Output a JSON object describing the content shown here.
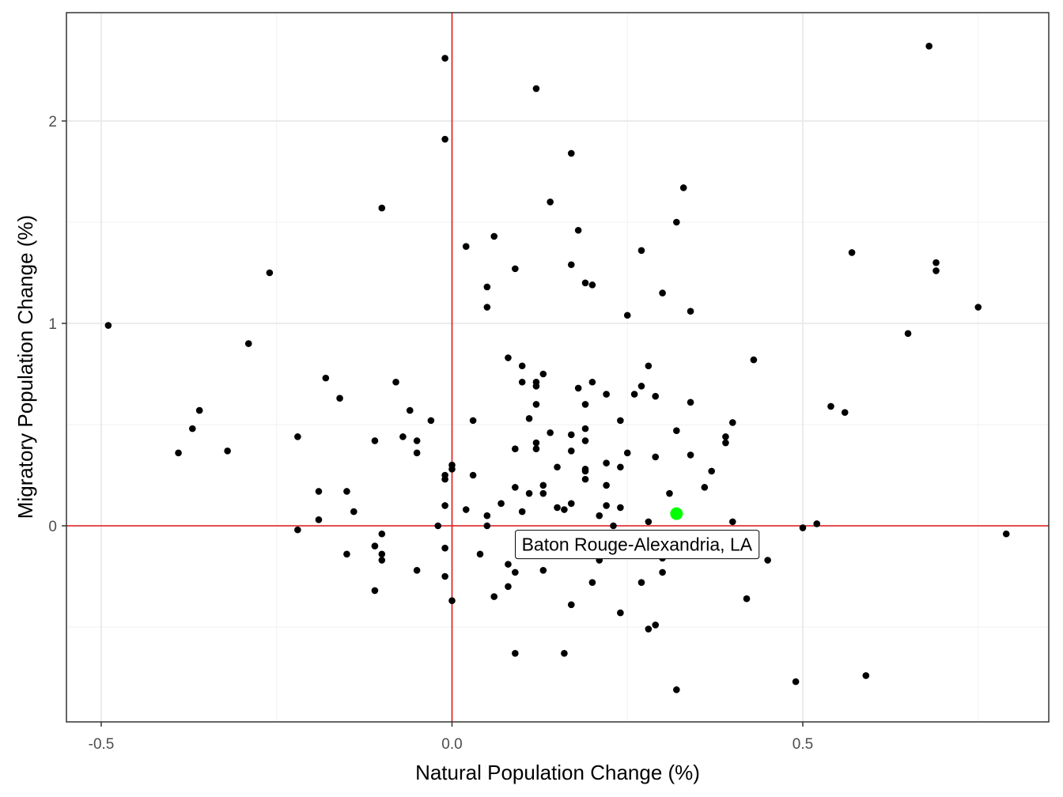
{
  "chart_data": {
    "type": "scatter",
    "xlabel": "Natural Population Change (%)",
    "ylabel": "Migratory Population Change (%)",
    "xlim": [
      -0.5,
      0.8
    ],
    "ylim": [
      -0.9,
      2.5
    ],
    "x_ticks": [
      -0.5,
      0.0,
      0.5
    ],
    "x_tick_labels": [
      "-0.5",
      "0.0",
      "0.5"
    ],
    "y_ticks": [
      0,
      1,
      2
    ],
    "y_tick_labels": [
      "0",
      "1",
      "2"
    ],
    "grid": true,
    "theme": "bw",
    "reference_lines": {
      "x": 0,
      "y": 0,
      "color": "#e31a1c"
    },
    "point_color": "#000000",
    "highlight_color": "#00ff00",
    "highlight": {
      "x": 0.32,
      "y": 0.06,
      "label": "Baton Rouge-Alexandria, LA"
    },
    "points": [
      {
        "x": -0.49,
        "y": 0.99
      },
      {
        "x": -0.39,
        "y": 0.36
      },
      {
        "x": -0.37,
        "y": 0.48
      },
      {
        "x": -0.36,
        "y": 0.57
      },
      {
        "x": -0.32,
        "y": 0.37
      },
      {
        "x": -0.29,
        "y": 0.9
      },
      {
        "x": -0.26,
        "y": 1.25
      },
      {
        "x": -0.22,
        "y": 0.44
      },
      {
        "x": -0.22,
        "y": -0.02
      },
      {
        "x": -0.19,
        "y": 0.17
      },
      {
        "x": -0.19,
        "y": 0.03
      },
      {
        "x": -0.18,
        "y": 0.73
      },
      {
        "x": -0.16,
        "y": 0.63
      },
      {
        "x": -0.15,
        "y": 0.17
      },
      {
        "x": -0.15,
        "y": -0.14
      },
      {
        "x": -0.14,
        "y": 0.07
      },
      {
        "x": -0.11,
        "y": 0.42
      },
      {
        "x": -0.11,
        "y": -0.1
      },
      {
        "x": -0.11,
        "y": -0.32
      },
      {
        "x": -0.1,
        "y": 1.57
      },
      {
        "x": -0.1,
        "y": -0.04
      },
      {
        "x": -0.1,
        "y": -0.14
      },
      {
        "x": -0.1,
        "y": -0.17
      },
      {
        "x": -0.08,
        "y": 0.71
      },
      {
        "x": -0.07,
        "y": 0.44
      },
      {
        "x": -0.06,
        "y": 0.57
      },
      {
        "x": -0.05,
        "y": 0.42
      },
      {
        "x": -0.05,
        "y": 0.36
      },
      {
        "x": -0.05,
        "y": -0.22
      },
      {
        "x": -0.03,
        "y": 0.52
      },
      {
        "x": -0.02,
        "y": 0.0
      },
      {
        "x": -0.01,
        "y": 2.31
      },
      {
        "x": -0.01,
        "y": 1.91
      },
      {
        "x": -0.01,
        "y": 0.25
      },
      {
        "x": -0.01,
        "y": 0.23
      },
      {
        "x": -0.01,
        "y": 0.1
      },
      {
        "x": -0.01,
        "y": -0.11
      },
      {
        "x": -0.01,
        "y": -0.25
      },
      {
        "x": 0.0,
        "y": 0.3
      },
      {
        "x": 0.0,
        "y": 0.28
      },
      {
        "x": 0.0,
        "y": -0.37
      },
      {
        "x": 0.02,
        "y": 1.38
      },
      {
        "x": 0.02,
        "y": 0.08
      },
      {
        "x": 0.03,
        "y": 0.52
      },
      {
        "x": 0.03,
        "y": 0.25
      },
      {
        "x": 0.04,
        "y": -0.14
      },
      {
        "x": 0.05,
        "y": 1.18
      },
      {
        "x": 0.05,
        "y": 1.08
      },
      {
        "x": 0.05,
        "y": 0.05
      },
      {
        "x": 0.05,
        "y": 0.0
      },
      {
        "x": 0.06,
        "y": 1.43
      },
      {
        "x": 0.06,
        "y": -0.35
      },
      {
        "x": 0.07,
        "y": 0.11
      },
      {
        "x": 0.08,
        "y": 0.83
      },
      {
        "x": 0.08,
        "y": -0.19
      },
      {
        "x": 0.08,
        "y": -0.3
      },
      {
        "x": 0.09,
        "y": 1.27
      },
      {
        "x": 0.09,
        "y": 0.38
      },
      {
        "x": 0.09,
        "y": 0.19
      },
      {
        "x": 0.09,
        "y": -0.23
      },
      {
        "x": 0.09,
        "y": -0.63
      },
      {
        "x": 0.1,
        "y": 0.79
      },
      {
        "x": 0.1,
        "y": 0.71
      },
      {
        "x": 0.1,
        "y": 0.07
      },
      {
        "x": 0.11,
        "y": 0.53
      },
      {
        "x": 0.11,
        "y": 0.16
      },
      {
        "x": 0.12,
        "y": 2.16
      },
      {
        "x": 0.12,
        "y": 0.71
      },
      {
        "x": 0.12,
        "y": 0.69
      },
      {
        "x": 0.12,
        "y": 0.6
      },
      {
        "x": 0.12,
        "y": 0.41
      },
      {
        "x": 0.12,
        "y": 0.38
      },
      {
        "x": 0.13,
        "y": 0.75
      },
      {
        "x": 0.13,
        "y": 0.2
      },
      {
        "x": 0.13,
        "y": 0.16
      },
      {
        "x": 0.13,
        "y": -0.22
      },
      {
        "x": 0.14,
        "y": 1.6
      },
      {
        "x": 0.14,
        "y": 0.46
      },
      {
        "x": 0.15,
        "y": 0.29
      },
      {
        "x": 0.15,
        "y": 0.09
      },
      {
        "x": 0.16,
        "y": 0.08
      },
      {
        "x": 0.16,
        "y": -0.63
      },
      {
        "x": 0.17,
        "y": 1.84
      },
      {
        "x": 0.17,
        "y": 1.29
      },
      {
        "x": 0.17,
        "y": 0.45
      },
      {
        "x": 0.17,
        "y": 0.37
      },
      {
        "x": 0.17,
        "y": 0.11
      },
      {
        "x": 0.17,
        "y": -0.39
      },
      {
        "x": 0.18,
        "y": 1.46
      },
      {
        "x": 0.18,
        "y": 0.68
      },
      {
        "x": 0.19,
        "y": 1.2
      },
      {
        "x": 0.19,
        "y": 0.6
      },
      {
        "x": 0.19,
        "y": 0.48
      },
      {
        "x": 0.19,
        "y": 0.42
      },
      {
        "x": 0.19,
        "y": 0.28
      },
      {
        "x": 0.19,
        "y": 0.27
      },
      {
        "x": 0.19,
        "y": 0.23
      },
      {
        "x": 0.2,
        "y": 1.19
      },
      {
        "x": 0.2,
        "y": 0.71
      },
      {
        "x": 0.2,
        "y": -0.28
      },
      {
        "x": 0.21,
        "y": 0.05
      },
      {
        "x": 0.21,
        "y": -0.17
      },
      {
        "x": 0.22,
        "y": 0.65
      },
      {
        "x": 0.22,
        "y": 0.31
      },
      {
        "x": 0.22,
        "y": 0.2
      },
      {
        "x": 0.22,
        "y": 0.1
      },
      {
        "x": 0.23,
        "y": 0.0
      },
      {
        "x": 0.24,
        "y": 0.52
      },
      {
        "x": 0.24,
        "y": 0.29
      },
      {
        "x": 0.24,
        "y": 0.09
      },
      {
        "x": 0.24,
        "y": -0.43
      },
      {
        "x": 0.25,
        "y": 1.04
      },
      {
        "x": 0.25,
        "y": 0.36
      },
      {
        "x": 0.26,
        "y": 0.65
      },
      {
        "x": 0.27,
        "y": 1.36
      },
      {
        "x": 0.27,
        "y": 0.69
      },
      {
        "x": 0.27,
        "y": -0.28
      },
      {
        "x": 0.28,
        "y": 0.79
      },
      {
        "x": 0.28,
        "y": 0.02
      },
      {
        "x": 0.28,
        "y": -0.51
      },
      {
        "x": 0.29,
        "y": 0.64
      },
      {
        "x": 0.29,
        "y": 0.34
      },
      {
        "x": 0.29,
        "y": -0.49
      },
      {
        "x": 0.3,
        "y": 1.15
      },
      {
        "x": 0.3,
        "y": -0.16
      },
      {
        "x": 0.3,
        "y": -0.23
      },
      {
        "x": 0.31,
        "y": 0.16
      },
      {
        "x": 0.32,
        "y": 1.5
      },
      {
        "x": 0.32,
        "y": 0.47
      },
      {
        "x": 0.32,
        "y": -0.81
      },
      {
        "x": 0.33,
        "y": 1.67
      },
      {
        "x": 0.34,
        "y": 1.06
      },
      {
        "x": 0.34,
        "y": 0.61
      },
      {
        "x": 0.34,
        "y": 0.35
      },
      {
        "x": 0.36,
        "y": 0.19
      },
      {
        "x": 0.37,
        "y": 0.27
      },
      {
        "x": 0.39,
        "y": 0.44
      },
      {
        "x": 0.39,
        "y": 0.41
      },
      {
        "x": 0.4,
        "y": 0.51
      },
      {
        "x": 0.4,
        "y": 0.02
      },
      {
        "x": 0.42,
        "y": -0.36
      },
      {
        "x": 0.43,
        "y": 0.82
      },
      {
        "x": 0.45,
        "y": -0.17
      },
      {
        "x": 0.49,
        "y": -0.77
      },
      {
        "x": 0.5,
        "y": -0.01
      },
      {
        "x": 0.52,
        "y": 0.01
      },
      {
        "x": 0.54,
        "y": 0.59
      },
      {
        "x": 0.56,
        "y": 0.56
      },
      {
        "x": 0.57,
        "y": 1.35
      },
      {
        "x": 0.59,
        "y": -0.74
      },
      {
        "x": 0.65,
        "y": 0.95
      },
      {
        "x": 0.68,
        "y": 2.37
      },
      {
        "x": 0.69,
        "y": 1.3
      },
      {
        "x": 0.69,
        "y": 1.26
      },
      {
        "x": 0.75,
        "y": 1.08
      },
      {
        "x": 0.79,
        "y": -0.04
      }
    ]
  }
}
